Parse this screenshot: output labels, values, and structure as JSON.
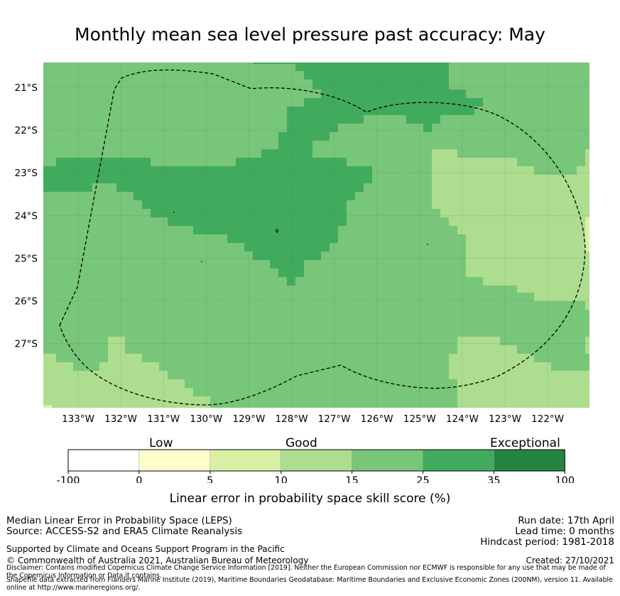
{
  "title": "Monthly mean sea level pressure past accuracy: May",
  "map": {
    "lon_ticks": [
      "133°W",
      "132°W",
      "131°W",
      "130°W",
      "129°W",
      "128°W",
      "127°W",
      "126°W",
      "125°W",
      "124°W",
      "123°W",
      "122°W"
    ],
    "lat_ticks": [
      "21°S",
      "22°S",
      "23°S",
      "24°S",
      "25°S",
      "26°S",
      "27°S"
    ],
    "grid": true
  },
  "legend": {
    "categories": [
      "Low",
      "Good",
      "Exceptional"
    ],
    "ticks": [
      "-100",
      "0",
      "5",
      "10",
      "15",
      "25",
      "35",
      "100"
    ],
    "colors": [
      "#ffffff",
      "#ffffcc",
      "#d9f0a3",
      "#addd8e",
      "#78c679",
      "#41ab5d",
      "#238443"
    ],
    "xlabel": "Linear error in probability space skill score (%)"
  },
  "footer": {
    "method": "Median Linear Error in Probability Space (LEPS)",
    "source": "Source: ACCESS-S2 and ERA5 Climate Reanalysis",
    "run_date": "Run date: 17th April",
    "lead_time": "Lead time: 0 months",
    "hindcast": "Hindcast period: 1981-2018",
    "supported": "Supported by Climate and Oceans Support Program in the Pacific",
    "copyright": "© Commonwealth of Australia 2021, Australian Bureau of Meteorology",
    "created": "Created: 27/10/2021",
    "disclaimer": "Disclaimer: Contains modified Copernicus Climate Change Service Information [2019]. Neither the European Commission nor ECMWF is responsible for any use that may be made of the Copernicus Information or Data it contains.",
    "shapefile": "Shapefile data extracted from Flanders Marine Institute (2019), Maritime Boundaries Geodatabase: Maritime Boundaries and Exclusive Economic Zones (200NM), version 11. Available online at http://www.marineregions.org/."
  }
}
